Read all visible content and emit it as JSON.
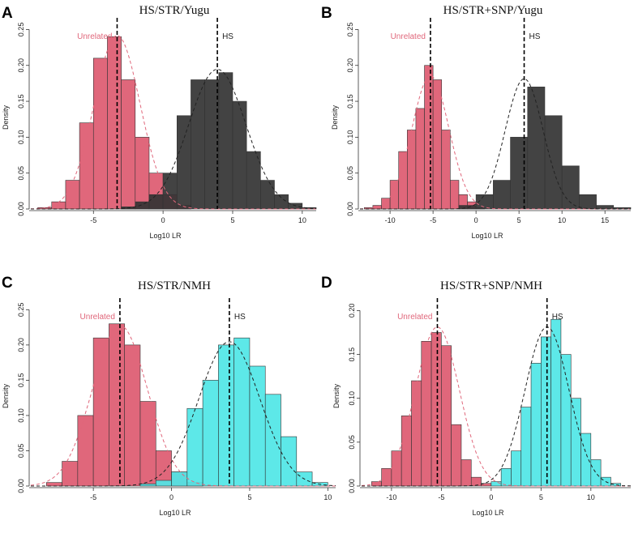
{
  "chart_data": [
    {
      "type": "histogram",
      "panel_label": "A",
      "title": "HS/STR/Yugu",
      "xlabel": "Log10 LR",
      "ylabel": "Density",
      "xlim": [
        -9.5,
        11
      ],
      "ylim": [
        0,
        0.255
      ],
      "xticks": [
        -5,
        0,
        5,
        10
      ],
      "yticks": [
        0.0,
        0.05,
        0.1,
        0.15,
        0.2,
        0.25
      ],
      "series": [
        {
          "name": "Unrelated",
          "color": "#e0677b",
          "bin_edges": [
            -9,
            -8,
            -7,
            -6,
            -5,
            -4,
            -3,
            -2,
            -1,
            0,
            1,
            2
          ],
          "values": [
            0.002,
            0.01,
            0.04,
            0.12,
            0.21,
            0.24,
            0.18,
            0.1,
            0.05,
            0.02,
            0.005
          ],
          "mean": -3.3,
          "sd": 1.65,
          "label": "Unrelated"
        },
        {
          "name": "HS",
          "color": "#333333",
          "bin_edges": [
            -3,
            -2,
            -1,
            0,
            1,
            2,
            3,
            4,
            5,
            6,
            7,
            8,
            9,
            10,
            11
          ],
          "values": [
            0.003,
            0.01,
            0.02,
            0.05,
            0.13,
            0.18,
            0.18,
            0.19,
            0.15,
            0.08,
            0.04,
            0.02,
            0.008,
            0.002
          ],
          "mean": 3.9,
          "sd": 2.05,
          "label": "HS"
        }
      ]
    },
    {
      "type": "histogram",
      "panel_label": "B",
      "title": "HS/STR+SNP/Yugu",
      "xlabel": "Log10 LR",
      "ylabel": "Density",
      "xlim": [
        -13.5,
        18
      ],
      "ylim": [
        0,
        0.255
      ],
      "xticks": [
        -10,
        -5,
        0,
        5,
        10,
        15
      ],
      "yticks": [
        0.0,
        0.05,
        0.1,
        0.15,
        0.2,
        0.25
      ],
      "series": [
        {
          "name": "Unrelated",
          "color": "#e0677b",
          "bin_edges": [
            -13,
            -12,
            -11,
            -10,
            -9,
            -8,
            -7,
            -6,
            -5,
            -4,
            -3,
            -2,
            -1,
            0,
            1
          ],
          "values": [
            0.002,
            0.005,
            0.015,
            0.04,
            0.08,
            0.11,
            0.14,
            0.2,
            0.18,
            0.11,
            0.04,
            0.02,
            0.01,
            0.002
          ],
          "mean": -5.3,
          "sd": 2.15,
          "label": "Unrelated"
        },
        {
          "name": "HS",
          "color": "#333333",
          "bin_edges": [
            -2,
            0,
            2,
            4,
            6,
            8,
            10,
            12,
            14,
            16,
            18
          ],
          "values": [
            0.005,
            0.02,
            0.04,
            0.1,
            0.17,
            0.13,
            0.06,
            0.02,
            0.005,
            0.002
          ],
          "mean": 5.6,
          "sd": 2.2,
          "label": "HS"
        }
      ]
    },
    {
      "type": "histogram",
      "panel_label": "C",
      "title": "HS/STR/NMH",
      "xlabel": "Log10 LR",
      "ylabel": "Density",
      "xlim": [
        -9,
        10.5
      ],
      "ylim": [
        0,
        0.255
      ],
      "xticks": [
        -5,
        0,
        5,
        10
      ],
      "yticks": [
        0.0,
        0.05,
        0.1,
        0.15,
        0.2,
        0.25
      ],
      "series": [
        {
          "name": "Unrelated",
          "color": "#e0677b",
          "bin_edges": [
            -8,
            -7,
            -6,
            -5,
            -4,
            -3,
            -2,
            -1,
            0,
            1,
            2
          ],
          "values": [
            0.005,
            0.035,
            0.1,
            0.21,
            0.23,
            0.2,
            0.12,
            0.05,
            0.02,
            0.005
          ],
          "mean": -3.3,
          "sd": 1.75,
          "label": "Unrelated"
        },
        {
          "name": "HS",
          "color": "#4fe6e6",
          "bin_edges": [
            -2,
            -1,
            0,
            1,
            2,
            3,
            4,
            5,
            6,
            7,
            8,
            9,
            10
          ],
          "values": [
            0.003,
            0.008,
            0.02,
            0.11,
            0.15,
            0.2,
            0.21,
            0.17,
            0.13,
            0.07,
            0.02,
            0.005
          ],
          "mean": 3.7,
          "sd": 1.95,
          "label": "HS"
        }
      ]
    },
    {
      "type": "histogram",
      "panel_label": "D",
      "title": "HS/STR+SNP/NMH",
      "xlabel": "Log10 LR",
      "ylabel": "Density",
      "xlim": [
        -13,
        14
      ],
      "ylim": [
        0,
        0.205
      ],
      "xticks": [
        -10,
        -5,
        0,
        5,
        10
      ],
      "yticks": [
        0.0,
        0.05,
        0.1,
        0.15,
        0.2
      ],
      "series": [
        {
          "name": "Unrelated",
          "color": "#e0677b",
          "bin_edges": [
            -12,
            -11,
            -10,
            -9,
            -8,
            -7,
            -6,
            -5,
            -4,
            -3,
            -2,
            -1,
            0
          ],
          "values": [
            0.005,
            0.02,
            0.04,
            0.08,
            0.12,
            0.165,
            0.175,
            0.16,
            0.07,
            0.03,
            0.01,
            0.003
          ],
          "mean": -5.4,
          "sd": 2.2,
          "label": "Unrelated"
        },
        {
          "name": "HS",
          "color": "#4fe6e6",
          "bin_edges": [
            0,
            1,
            2,
            3,
            4,
            5,
            6,
            7,
            8,
            9,
            10,
            11,
            12,
            13
          ],
          "values": [
            0.005,
            0.02,
            0.04,
            0.09,
            0.14,
            0.17,
            0.19,
            0.15,
            0.1,
            0.06,
            0.03,
            0.01,
            0.003
          ],
          "mean": 5.6,
          "sd": 2.2,
          "label": "HS"
        }
      ]
    }
  ]
}
